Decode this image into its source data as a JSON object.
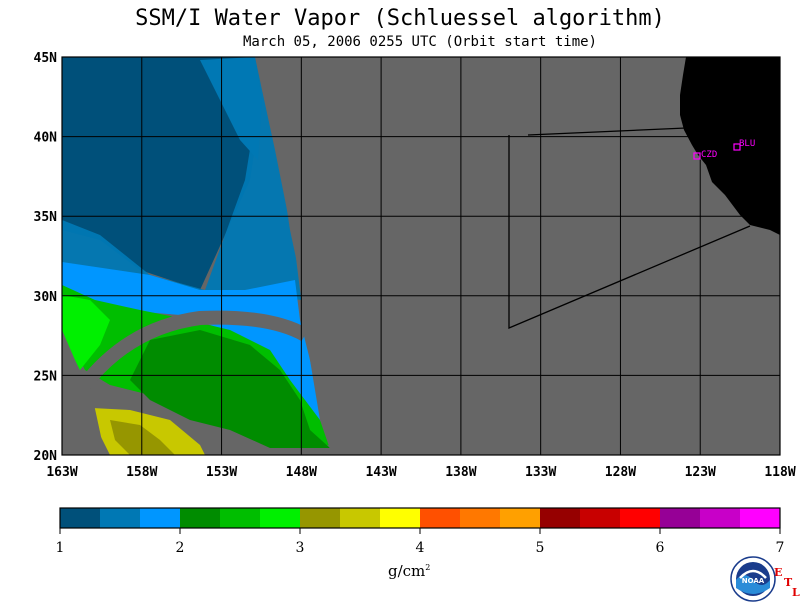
{
  "title": "SSM/I Water Vapor (Schluessel algorithm)",
  "subtitle": "March 05, 2006  0255 UTC  (Orbit start time)",
  "map": {
    "lon_labels": [
      "163W",
      "158W",
      "153W",
      "148W",
      "143W",
      "138W",
      "133W",
      "128W",
      "123W",
      "118W"
    ],
    "lat_labels": [
      "45N",
      "40N",
      "35N",
      "30N",
      "25N",
      "20N"
    ],
    "no_data_color": "#666666",
    "land_color": "#000000",
    "stations": [
      {
        "label": "CZD",
        "color": "#ff00ff"
      },
      {
        "label": "BLU",
        "color": "#ff00ff"
      }
    ]
  },
  "colorbar": {
    "tick_labels": [
      "1",
      "2",
      "3",
      "4",
      "5",
      "6",
      "7"
    ],
    "units": "g/cm",
    "units_exp": "2",
    "colors": [
      "#00507a",
      "#0078b4",
      "#0096ff",
      "#008c00",
      "#00be00",
      "#00f000",
      "#969600",
      "#c8c800",
      "#ffff00",
      "#ff5000",
      "#ff7800",
      "#ffa000",
      "#960000",
      "#c80000",
      "#ff0000",
      "#960096",
      "#c800c8",
      "#ff00ff"
    ]
  },
  "logo": {
    "text": "NOAA",
    "etl_letters": [
      "E",
      "T",
      "L"
    ]
  }
}
